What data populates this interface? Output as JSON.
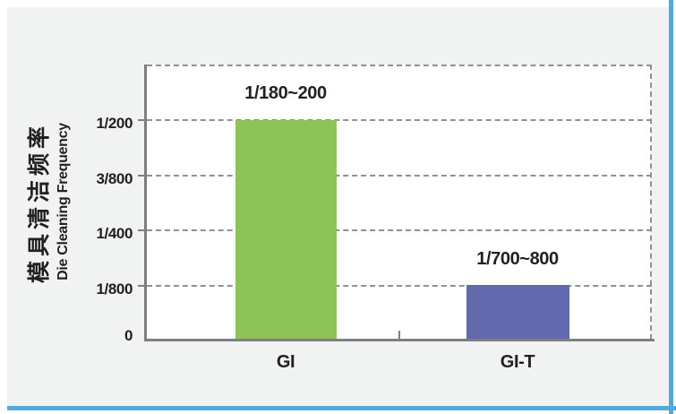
{
  "chart_data": {
    "type": "bar",
    "title": "",
    "categories": [
      "GI",
      "GI-T"
    ],
    "series": [
      {
        "name": "Die Cleaning Frequency",
        "values": [
          0.005,
          0.00125
        ],
        "values_as_fractions": [
          "1/200",
          "1/800"
        ],
        "data_labels": [
          "1/180~200",
          "1/700~800"
        ]
      }
    ],
    "xlabel": "",
    "ylabel_zh": "模具清洁频率",
    "ylabel_en": "Die Cleaning Frequency",
    "ytick_labels_top_to_bottom": [
      "1/200",
      "3/800",
      "1/400",
      "1/800",
      "0"
    ],
    "ytick_values": [
      0.005,
      0.00375,
      0.0025,
      0.00125,
      0
    ],
    "ylim": [
      0,
      0.00625
    ],
    "grid": "horizontal-dashed, unlabeled top gridline at 0.00625, dashed right plot border",
    "legend_position": "none"
  },
  "style": {
    "bar_colors": [
      "#8cc457",
      "#6169ae"
    ],
    "panel_background": "#f1f2f2",
    "plot_background": "#ffffff",
    "axis_color": "#7d7f82",
    "gridline_color": "#8f9194",
    "text_color": "#231f20",
    "frame_blue": "#55a8da"
  }
}
